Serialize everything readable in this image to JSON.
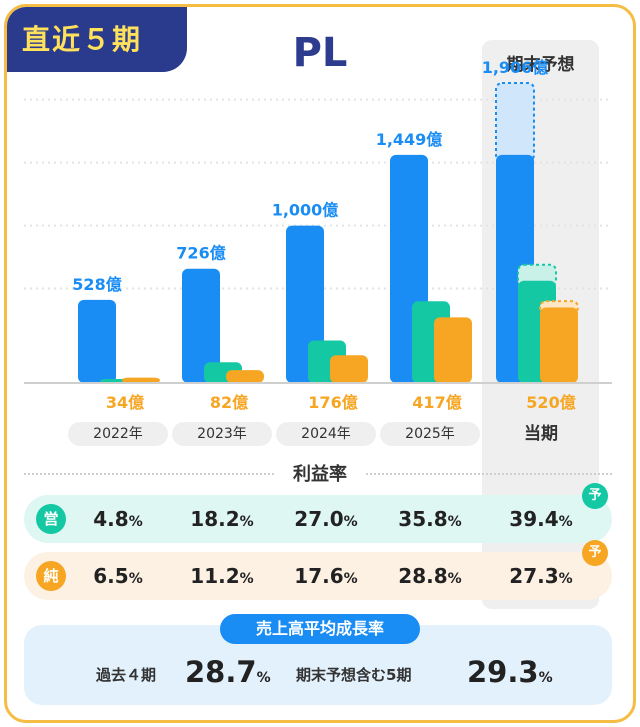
{
  "header": {
    "tag": "直近５期",
    "title": "PL"
  },
  "forecast_column_label": "期末予想",
  "chart_data": {
    "type": "bar",
    "categories": [
      "2022年",
      "2023年",
      "2024年",
      "2025年",
      "当期"
    ],
    "series": [
      {
        "name": "売上高",
        "values": [
          528,
          726,
          1000,
          1449,
          1906
        ],
        "labels": [
          "528億",
          "726億",
          "1,000億",
          "1,449億",
          "1,906億"
        ],
        "color": "#1a8df4",
        "light": "#cfe6fb"
      },
      {
        "name": "営業利益",
        "values": [
          25,
          132,
          270,
          519,
          751
        ],
        "color": "#14c8a4",
        "light": "#c9f1e8"
      },
      {
        "name": "純利益",
        "values": [
          34,
          82,
          176,
          417,
          520
        ],
        "labels": [
          "34億",
          "82億",
          "176億",
          "417億",
          "520億"
        ],
        "color": "#f6a623",
        "light": "#fde7c4"
      }
    ],
    "forecast_actual_values": [
      1449,
      650,
      480
    ],
    "ylim": [
      0,
      2000
    ],
    "grid": true
  },
  "margins": {
    "title": "利益率",
    "operating": {
      "badge": "営",
      "values": [
        "4.8",
        "18.2",
        "27.0",
        "35.8",
        "39.4"
      ]
    },
    "net": {
      "badge": "純",
      "values": [
        "6.5",
        "11.2",
        "17.6",
        "28.8",
        "27.3"
      ]
    },
    "forecast_badge": "予",
    "unit": "%"
  },
  "growth": {
    "title": "売上高平均成長率",
    "past_label": "過去４期",
    "past_value": "28.7",
    "forecast_label": "期末予想含む5期",
    "forecast_value": "29.3",
    "unit": "%"
  }
}
